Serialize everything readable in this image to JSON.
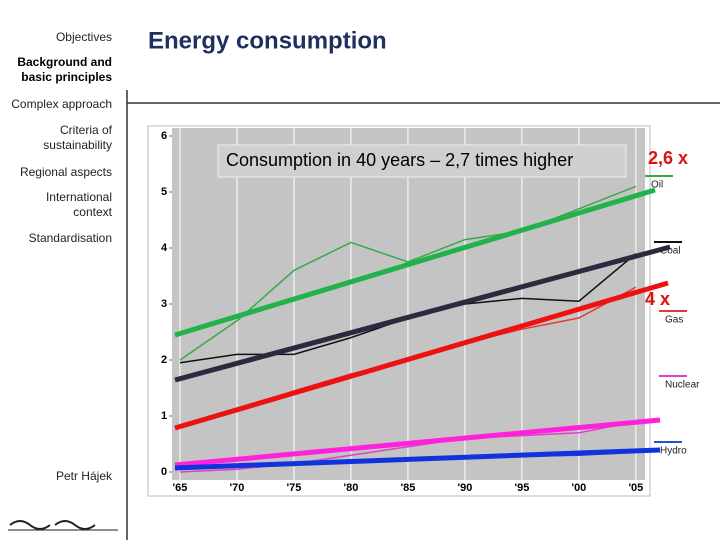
{
  "sidebar": {
    "items": [
      "Objectives",
      "Background and basic principles",
      "Complex approach",
      "Criteria of sustainability",
      "Regional aspects",
      "International context",
      "Standardisation"
    ],
    "author": "Petr Hájek"
  },
  "header": {
    "title": "Energy consumption"
  },
  "chart_data": {
    "type": "line",
    "annotations": [
      "Consumption in 40 years – 2,7 times higher",
      "2,6 x",
      "4 x"
    ],
    "x": [
      1965,
      1970,
      1975,
      1980,
      1985,
      1990,
      1995,
      2000,
      2005
    ],
    "xlim": [
      1964.3,
      2005.8
    ],
    "xticks": [
      {
        "value": 1965,
        "label": "'65"
      },
      {
        "value": 1970,
        "label": "'70"
      },
      {
        "value": 1975,
        "label": "'75"
      },
      {
        "value": 1980,
        "label": "'80"
      },
      {
        "value": 1985,
        "label": "'85"
      },
      {
        "value": 1990,
        "label": "'90"
      },
      {
        "value": 1995,
        "label": "'95"
      },
      {
        "value": 2000,
        "label": "'00"
      },
      {
        "value": 2005,
        "label": "'05"
      }
    ],
    "ylim": [
      0,
      6
    ],
    "yticks": [
      0,
      1,
      2,
      3,
      4,
      5,
      6
    ],
    "series": [
      {
        "name": "Oil",
        "color": "#3aa84a",
        "values": [
          2.0,
          2.7,
          3.6,
          4.1,
          3.75,
          4.15,
          4.3,
          4.7,
          5.1
        ]
      },
      {
        "name": "Coal",
        "color": "#111111",
        "values": [
          1.95,
          2.1,
          2.1,
          2.4,
          2.75,
          3.0,
          3.1,
          3.05,
          3.9
        ]
      },
      {
        "name": "Gas",
        "color": "#e23a3a",
        "values": [
          0.8,
          1.1,
          1.45,
          1.75,
          2.0,
          2.3,
          2.55,
          2.75,
          3.3
        ]
      },
      {
        "name": "Nuclear",
        "color": "#e040c8",
        "values": [
          0.0,
          0.05,
          0.15,
          0.3,
          0.45,
          0.6,
          0.65,
          0.7,
          0.9
        ]
      },
      {
        "name": "Hydro",
        "color": "#2850d0",
        "values": [
          0.1,
          0.13,
          0.17,
          0.2,
          0.22,
          0.25,
          0.28,
          0.3,
          0.35
        ]
      }
    ]
  }
}
